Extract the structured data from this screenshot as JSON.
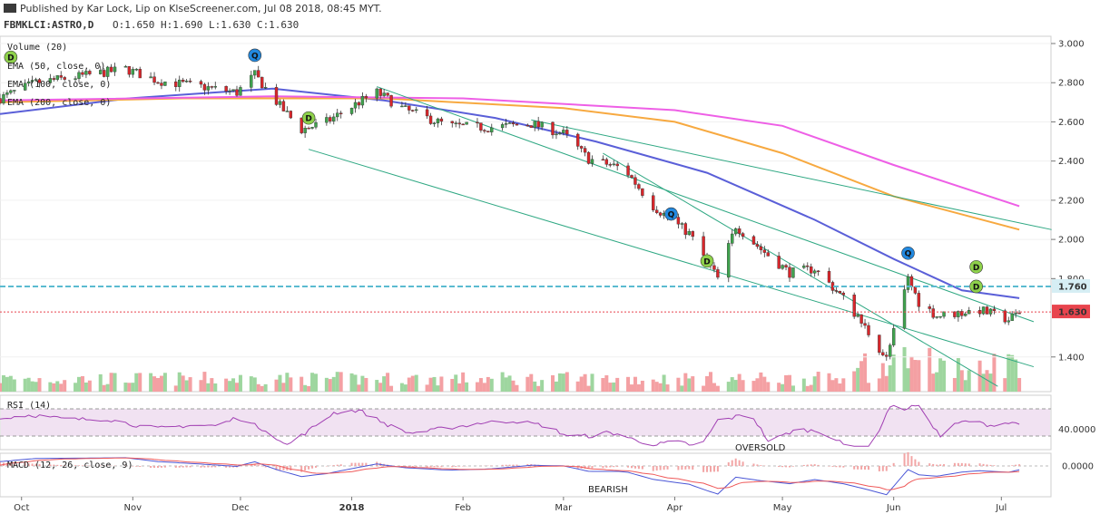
{
  "header": {
    "published": "Published by Kar Lock, Lip on KlseScreener.com, Jul 08 2018, 08:45 MYT.",
    "symbol": "FBMKLCI:ASTRO,D",
    "ohlc": "O:1.650 H:1.690 L:1.630 C:1.630"
  },
  "legend": {
    "volume": "Volume (20)",
    "ema50": "EMA (50, close, 0)",
    "ema100": "EMA (100, close, 0)",
    "ema200": "EMA (200, close, 0)",
    "rsi": "RSI (14)",
    "macd": "MACD (12, 26, close, 9)"
  },
  "annotations": {
    "oversold": "OVERSOLD",
    "bearish": "BEARISH",
    "marker_q": "Q",
    "marker_d": "D"
  },
  "colors": {
    "up": "#3fa34d",
    "down": "#d9262b",
    "vol_up": "#9ed69f",
    "vol_down": "#f4a0a3",
    "ema50": "#5a5fd8",
    "ema100": "#f7a940",
    "ema200": "#ee5fe6",
    "trend": "#2fa883",
    "resistance": "#5bbbd0",
    "last_price": "#e8444d",
    "rsi_fill": "#f1e2f2",
    "rsi_line": "#a13fb3",
    "macd_line": "#4a56d6",
    "signal_line": "#ef5a5a"
  },
  "chart_data": {
    "type": "candlestick",
    "x_ticks": [
      "Oct",
      "Nov",
      "Dec",
      "2018",
      "Feb",
      "Mar",
      "Apr",
      "May",
      "Jun",
      "Jul"
    ],
    "y_ticks": [
      "3.000",
      "2.800",
      "2.600",
      "2.400",
      "2.200",
      "2.000",
      "1.800",
      "1.400"
    ],
    "ylim": [
      1.2,
      3.0
    ],
    "price_labels": {
      "resistance": "1.760",
      "last": "1.630"
    },
    "rsi": {
      "ticks": [
        "40.0000"
      ],
      "upper": 70,
      "lower": 30,
      "ylim": [
        10,
        90
      ]
    },
    "macd": {
      "ticks": [
        "0.0000"
      ]
    },
    "price_path": [
      [
        "2017-09-25",
        2.72
      ],
      [
        "2017-10-05",
        2.8
      ],
      [
        "2017-10-20",
        2.84
      ],
      [
        "2017-10-30",
        2.87
      ],
      [
        "2017-11-08",
        2.81
      ],
      [
        "2017-11-20",
        2.78
      ],
      [
        "2017-11-30",
        2.75
      ],
      [
        "2017-12-05",
        2.84
      ],
      [
        "2017-12-12",
        2.68
      ],
      [
        "2017-12-18",
        2.56
      ],
      [
        "2017-12-25",
        2.6
      ],
      [
        "2018-01-03",
        2.7
      ],
      [
        "2018-01-08",
        2.75
      ],
      [
        "2018-01-16",
        2.66
      ],
      [
        "2018-01-28",
        2.58
      ],
      [
        "2018-02-08",
        2.57
      ],
      [
        "2018-02-20",
        2.59
      ],
      [
        "2018-03-01",
        2.54
      ],
      [
        "2018-03-08",
        2.41
      ],
      [
        "2018-03-18",
        2.36
      ],
      [
        "2018-03-26",
        2.17
      ],
      [
        "2018-04-05",
        2.03
      ],
      [
        "2018-04-13",
        1.8
      ],
      [
        "2018-04-18",
        2.07
      ],
      [
        "2018-04-25",
        1.95
      ],
      [
        "2018-05-03",
        1.83
      ],
      [
        "2018-05-10",
        1.85
      ],
      [
        "2018-05-18",
        1.7
      ],
      [
        "2018-05-24",
        1.55
      ],
      [
        "2018-05-30",
        1.39
      ],
      [
        "2018-06-05",
        1.8
      ],
      [
        "2018-06-08",
        1.68
      ],
      [
        "2018-06-13",
        1.61
      ],
      [
        "2018-06-25",
        1.64
      ],
      [
        "2018-07-03",
        1.59
      ],
      [
        "2018-07-06",
        1.63
      ]
    ],
    "ema50": [
      [
        "2017-09-25",
        2.64
      ],
      [
        "2017-10-31",
        2.72
      ],
      [
        "2017-12-10",
        2.77
      ],
      [
        "2018-01-10",
        2.71
      ],
      [
        "2018-02-10",
        2.62
      ],
      [
        "2018-03-10",
        2.5
      ],
      [
        "2018-04-10",
        2.34
      ],
      [
        "2018-05-10",
        2.1
      ],
      [
        "2018-06-01",
        1.9
      ],
      [
        "2018-06-20",
        1.74
      ],
      [
        "2018-07-06",
        1.7
      ]
    ],
    "ema100": [
      [
        "2017-09-25",
        2.7
      ],
      [
        "2017-11-15",
        2.72
      ],
      [
        "2018-01-10",
        2.72
      ],
      [
        "2018-03-01",
        2.67
      ],
      [
        "2018-04-01",
        2.6
      ],
      [
        "2018-05-01",
        2.44
      ],
      [
        "2018-06-01",
        2.22
      ],
      [
        "2018-07-06",
        2.05
      ]
    ],
    "ema200": [
      [
        "2017-09-25",
        2.71
      ],
      [
        "2017-12-10",
        2.73
      ],
      [
        "2018-02-01",
        2.72
      ],
      [
        "2018-04-01",
        2.66
      ],
      [
        "2018-05-01",
        2.58
      ],
      [
        "2018-06-01",
        2.38
      ],
      [
        "2018-07-06",
        2.17
      ]
    ],
    "trendlines": [
      {
        "from": [
          "2017-12-20",
          2.46
        ],
        "to": [
          "2018-07-10",
          1.35
        ]
      },
      {
        "from": [
          "2018-01-08",
          2.78
        ],
        "to": [
          "2018-07-10",
          1.58
        ]
      },
      {
        "from": [
          "2018-02-20",
          2.61
        ],
        "to": [
          "2018-07-15",
          2.05
        ]
      },
      {
        "from": [
          "2018-03-12",
          2.44
        ],
        "to": [
          "2018-06-30",
          1.25
        ]
      }
    ],
    "markers": [
      {
        "type": "D",
        "date": "2017-09-28",
        "price": 2.93
      },
      {
        "type": "Q",
        "date": "2017-12-05",
        "price": 2.94
      },
      {
        "type": "D",
        "date": "2017-12-20",
        "price": 2.62
      },
      {
        "type": "Q",
        "date": "2018-03-31",
        "price": 2.13
      },
      {
        "type": "D",
        "date": "2018-04-10",
        "price": 1.89
      },
      {
        "type": "Q",
        "date": "2018-06-05",
        "price": 1.93
      },
      {
        "type": "D",
        "date": "2018-06-24",
        "price": 1.86
      },
      {
        "type": "D",
        "date": "2018-06-24",
        "price": 1.76
      }
    ]
  }
}
